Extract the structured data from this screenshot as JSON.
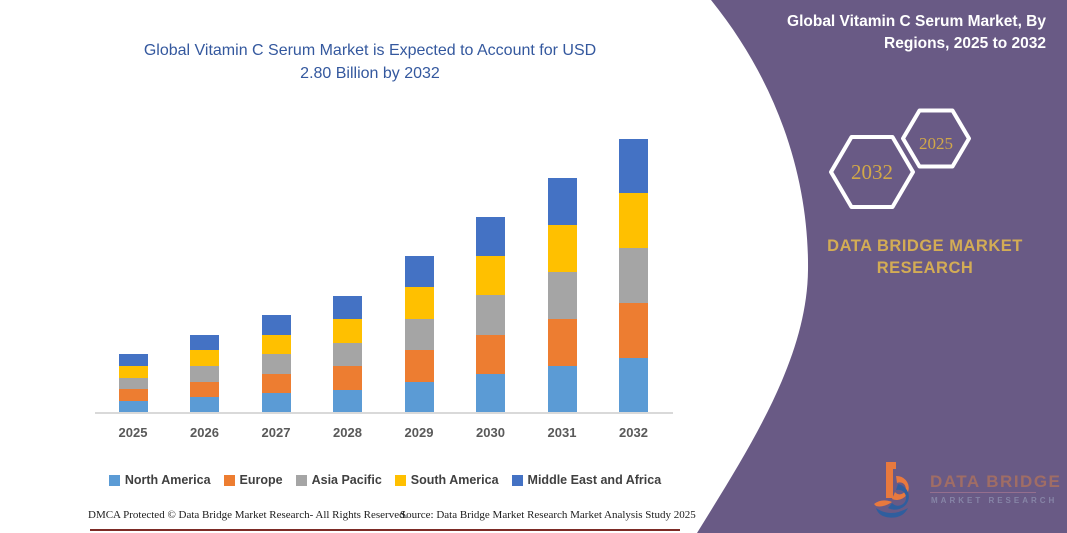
{
  "chart": {
    "title_line1": "Global Vitamin C Serum Market is Expected to Account for USD",
    "title_line2": "2.80 Billion by 2032"
  },
  "chart_data": {
    "type": "bar",
    "stacked": true,
    "title": "Global Vitamin C Serum Market is Expected to Account for USD 2.80 Billion by 2032",
    "xlabel": "",
    "ylabel": "",
    "units": "USD Billion",
    "grid": false,
    "legend_position": "bottom",
    "categories": [
      "2025",
      "2026",
      "2027",
      "2028",
      "2029",
      "2030",
      "2031",
      "2032"
    ],
    "totals": [
      0.6,
      0.8,
      1.0,
      1.2,
      1.6,
      2.0,
      2.4,
      2.8
    ],
    "series": [
      {
        "name": "North America",
        "color": "#5B9BD5",
        "values": [
          0.12,
          0.16,
          0.2,
          0.24,
          0.32,
          0.4,
          0.48,
          0.56
        ]
      },
      {
        "name": "Europe",
        "color": "#ED7D31",
        "values": [
          0.12,
          0.16,
          0.2,
          0.24,
          0.32,
          0.4,
          0.48,
          0.56
        ]
      },
      {
        "name": "Asia Pacific",
        "color": "#A5A5A5",
        "values": [
          0.12,
          0.16,
          0.2,
          0.24,
          0.32,
          0.4,
          0.48,
          0.56
        ]
      },
      {
        "name": "South America",
        "color": "#FFC000",
        "values": [
          0.12,
          0.16,
          0.2,
          0.24,
          0.32,
          0.4,
          0.48,
          0.56
        ]
      },
      {
        "name": "Middle East and Africa",
        "color": "#4472C4",
        "values": [
          0.12,
          0.16,
          0.2,
          0.24,
          0.32,
          0.4,
          0.48,
          0.56
        ]
      }
    ]
  },
  "footer": {
    "dmca": "DMCA Protected © Data Bridge Market Research-  All Rights Reserved.",
    "source": "Source: Data Bridge Market Research  Market Analysis Study 2025"
  },
  "panel": {
    "title": "Global Vitamin C Serum Market, By Regions, 2025 to 2032",
    "hexagon_left_year": "2032",
    "hexagon_right_year": "2025",
    "brand": "DATA BRIDGE MARKET RESEARCH",
    "logo_line1": "DATA BRIDGE",
    "logo_line2": "MARKET RESEARCH"
  },
  "colors": {
    "panel_background": "#695A85",
    "gold": "#D2A848",
    "title_blue": "#34589E",
    "axis_line": "#D9D9D9",
    "bottom_rule": "#7C2B26"
  }
}
